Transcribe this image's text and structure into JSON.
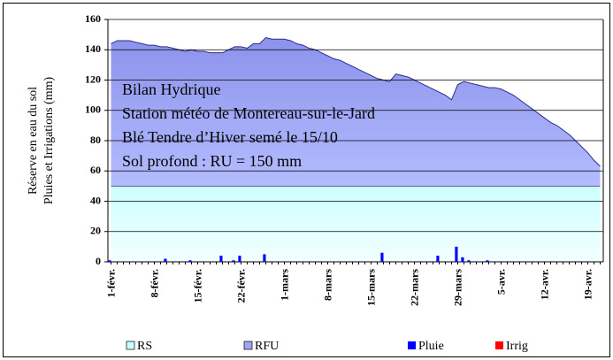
{
  "chart_data": {
    "type": "stacked_area_bar",
    "annotations": [
      "Bilan Hydrique",
      "Station météo de Montereau-sur-le-Jard",
      "Blé Tendre d’Hiver semé le 15/10",
      "Sol profond : RU = 150 mm"
    ],
    "y_label": [
      "Réserve en eau du sol",
      "Pluies et Irrigations (mm)"
    ],
    "categories": [
      "1-févr.",
      null,
      null,
      null,
      null,
      null,
      null,
      "8-févr.",
      null,
      null,
      null,
      null,
      null,
      null,
      "15-févr.",
      null,
      null,
      null,
      null,
      null,
      null,
      "22-févr.",
      null,
      null,
      null,
      null,
      null,
      null,
      "1-mars",
      null,
      null,
      null,
      null,
      null,
      null,
      "8-mars",
      null,
      null,
      null,
      null,
      null,
      null,
      "15-mars",
      null,
      null,
      null,
      null,
      null,
      null,
      "22-mars",
      null,
      null,
      null,
      null,
      null,
      null,
      "29-mars",
      null,
      null,
      null,
      null,
      null,
      null,
      "5-avr.",
      null,
      null,
      null,
      null,
      null,
      null,
      "12-avr.",
      null,
      null,
      null,
      null,
      null,
      null,
      "19-avr.",
      null,
      null
    ],
    "ylim": [
      0,
      160
    ],
    "yticks": [
      0,
      20,
      40,
      60,
      80,
      100,
      120,
      140,
      160
    ],
    "grid": true,
    "series": [
      {
        "name": "RS",
        "kind": "area",
        "color": "#ccffff",
        "values": [
          50,
          50,
          50,
          50,
          50,
          50,
          50,
          50,
          50,
          50,
          50,
          50,
          50,
          50,
          50,
          50,
          50,
          50,
          50,
          50,
          50,
          50,
          50,
          50,
          50,
          50,
          50,
          50,
          50,
          50,
          50,
          50,
          50,
          50,
          50,
          50,
          50,
          50,
          50,
          50,
          50,
          50,
          50,
          50,
          50,
          50,
          50,
          50,
          50,
          50,
          50,
          50,
          50,
          50,
          50,
          50,
          50,
          50,
          50,
          50,
          50,
          50,
          50,
          50,
          50,
          50,
          50,
          50,
          50,
          50,
          50,
          50,
          50,
          50,
          50,
          50,
          50,
          50,
          50,
          50
        ]
      },
      {
        "name": "RFU",
        "kind": "area",
        "color": "#9fa6f2",
        "values": [
          94,
          96,
          96,
          96,
          95,
          94,
          93,
          93,
          92,
          92,
          91,
          90,
          89,
          90,
          89,
          89,
          88,
          88,
          88,
          90,
          92,
          92,
          91,
          94,
          94,
          98,
          97,
          97,
          97,
          96,
          94,
          93,
          91,
          90,
          88,
          86,
          84,
          83,
          81,
          79,
          77,
          75,
          73,
          71,
          70,
          69,
          74,
          73,
          72,
          70,
          68,
          66,
          64,
          62,
          60,
          57,
          67,
          69,
          68,
          67,
          66,
          65,
          65,
          64,
          62,
          60,
          57,
          54,
          51,
          48,
          45,
          42,
          40,
          37,
          34,
          30,
          26,
          22,
          17,
          13
        ]
      },
      {
        "name": "Pluie",
        "kind": "bar",
        "color": "#0000ff",
        "values": [
          1,
          0,
          0,
          0,
          0,
          0,
          0,
          0,
          0,
          2,
          0,
          0,
          0,
          1,
          0,
          0,
          0,
          0,
          4,
          0,
          1,
          4,
          0,
          0,
          0,
          5,
          0,
          0,
          0,
          0,
          0,
          0,
          0,
          0,
          0,
          0,
          0,
          0,
          0,
          0,
          0,
          0,
          0,
          0,
          6,
          0,
          0,
          0,
          0,
          0,
          0,
          0,
          0,
          4,
          0,
          0,
          10,
          3,
          1,
          0,
          0,
          1,
          0,
          0,
          0,
          0,
          0,
          0,
          0,
          0,
          0,
          0,
          0,
          0,
          0,
          0,
          0,
          0,
          0,
          0
        ]
      },
      {
        "name": "Irrig",
        "kind": "bar",
        "color": "#ff0000",
        "values": [
          0,
          0,
          0,
          0,
          0,
          0,
          0,
          0,
          0,
          0,
          0,
          0,
          0,
          0,
          0,
          0,
          0,
          0,
          0,
          0,
          0,
          0,
          0,
          0,
          0,
          0,
          0,
          0,
          0,
          0,
          0,
          0,
          0,
          0,
          0,
          0,
          0,
          0,
          0,
          0,
          0,
          0,
          0,
          0,
          0,
          0,
          0,
          0,
          0,
          0,
          0,
          0,
          0,
          0,
          0,
          0,
          0,
          0,
          0,
          0,
          0,
          0,
          0,
          0,
          0,
          0,
          0,
          0,
          0,
          0,
          0,
          0,
          0,
          0,
          0,
          0,
          0,
          0,
          0,
          0
        ]
      }
    ]
  }
}
